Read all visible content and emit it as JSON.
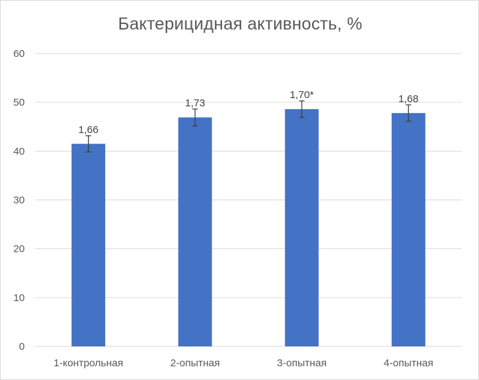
{
  "chart_data": {
    "type": "bar",
    "title": "Бактерицидная активность, %",
    "xlabel": "",
    "ylabel": "",
    "categories": [
      "1-контрольная",
      "2-опытная",
      "3-опытная",
      "4-опытная"
    ],
    "values": [
      41.5,
      46.9,
      48.6,
      47.8
    ],
    "error": [
      1.66,
      1.73,
      1.7,
      1.68
    ],
    "data_labels": [
      "1,66",
      "1,73",
      "1,70*",
      "1,68"
    ],
    "ylim": [
      0,
      60
    ],
    "yticks": [
      0,
      10,
      20,
      30,
      40,
      50,
      60
    ],
    "grid": true,
    "legend": "none",
    "colors": {
      "bar": "#4472c4",
      "grid": "#d9d9d9",
      "error_bar": "#404040"
    }
  }
}
